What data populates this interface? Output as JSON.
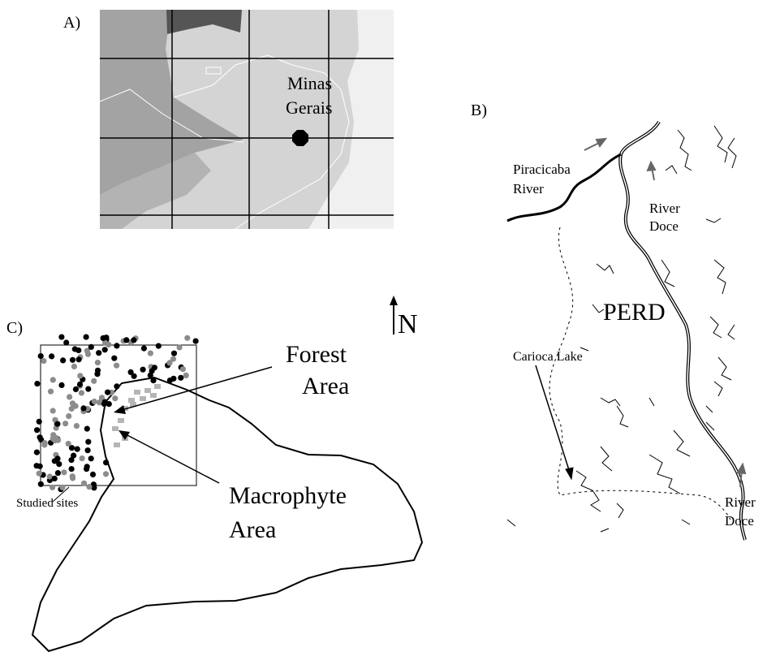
{
  "panel_a": {
    "label": "A)",
    "region_label": [
      "Minas",
      "Gerais"
    ]
  },
  "panel_b": {
    "label": "B)",
    "piracicaba_label": [
      "Piracicaba",
      "River"
    ],
    "doce_label_top": [
      "River",
      "Doce"
    ],
    "park_label": "PERD",
    "lake_label": "Carioca Lake",
    "doce_label_bottom": [
      "River",
      "Doce"
    ]
  },
  "panel_c": {
    "label": "C)",
    "north_label": "N",
    "forest_label": [
      "Forest",
      "Area"
    ],
    "macrophyte_label": [
      "Macrophyte",
      "Area"
    ],
    "sites_label": "Studied sites"
  }
}
